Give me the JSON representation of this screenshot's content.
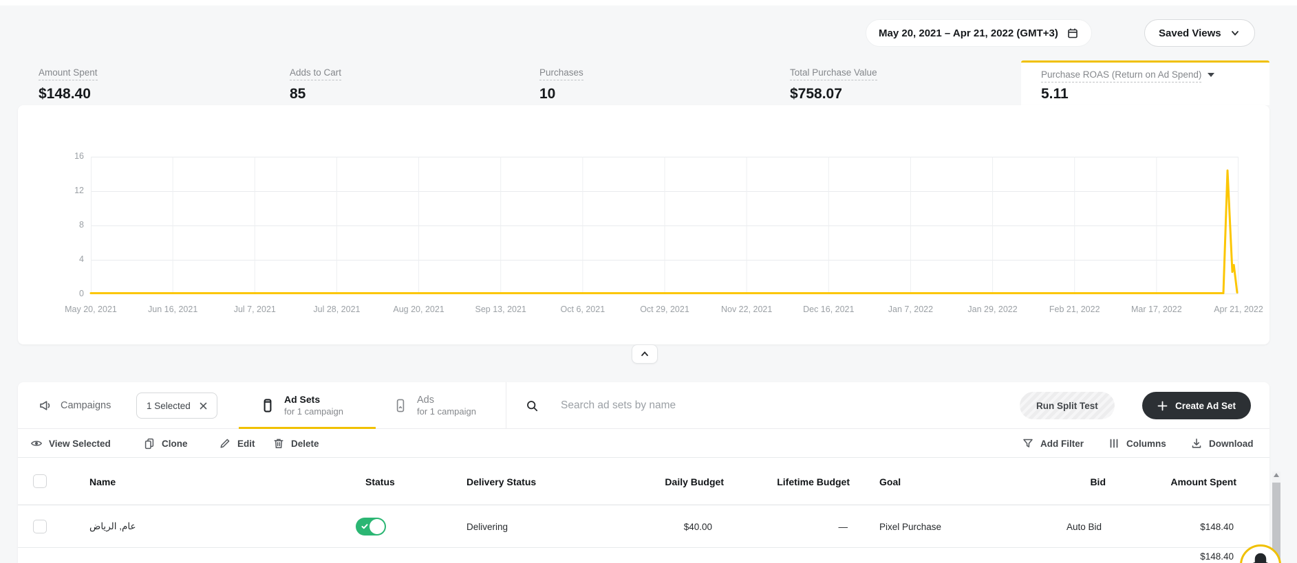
{
  "topbar": {
    "date_range": "May 20, 2021 – Apr 21, 2022 (GMT+3)",
    "saved_views_label": "Saved Views"
  },
  "metrics": [
    {
      "label": "Amount Spent",
      "value": "$148.40"
    },
    {
      "label": "Adds to Cart",
      "value": "85"
    },
    {
      "label": "Purchases",
      "value": "10"
    },
    {
      "label": "Total Purchase Value",
      "value": "$758.07"
    },
    {
      "label": "Purchase ROAS (Return on Ad Spend)",
      "value": "5.11",
      "selected": true
    }
  ],
  "chart_data": {
    "type": "line",
    "title": "Purchase ROAS (Return on Ad Spend)",
    "xlabel": "",
    "ylabel": "",
    "ylim": [
      0,
      16
    ],
    "y_ticks": [
      0,
      4,
      8,
      12,
      16
    ],
    "x_ticks": [
      "May 20, 2021",
      "Jun 16, 2021",
      "Jul 7, 2021",
      "Jul 28, 2021",
      "Aug 20, 2021",
      "Sep 13, 2021",
      "Oct 6, 2021",
      "Oct 29, 2021",
      "Nov 22, 2021",
      "Dec 16, 2021",
      "Jan 7, 2022",
      "Jan 29, 2022",
      "Feb 21, 2022",
      "Mar 17, 2022",
      "Apr 21, 2022"
    ],
    "grid": true,
    "legend_position": "none",
    "points_format": "[fraction_of_x_axis, value]",
    "series": [
      {
        "name": "Purchase ROAS (Return on Ad Spend)",
        "color": "#fcc603",
        "points": [
          [
            0,
            0
          ],
          [
            0.9868,
            0
          ],
          [
            0.9904,
            14.4
          ],
          [
            0.9946,
            2.6
          ],
          [
            0.9959,
            3.4
          ],
          [
            0.9988,
            0.2
          ]
        ]
      }
    ]
  },
  "tabs": {
    "campaigns_label": "Campaigns",
    "selected_chip_label": "1 Selected",
    "ad_sets_label": "Ad Sets",
    "ad_sets_sublabel": "for 1 campaign",
    "ads_label": "Ads",
    "ads_sublabel": "for 1 campaign",
    "active_tab": "Ad Sets"
  },
  "search": {
    "placeholder": "Search ad sets by name"
  },
  "buttons": {
    "run_split_test": "Run Split Test",
    "create_ad_set": "Create Ad Set"
  },
  "toolbar": {
    "view_selected": "View Selected",
    "clone": "Clone",
    "edit": "Edit",
    "delete": "Delete",
    "add_filter": "Add Filter",
    "columns": "Columns",
    "download": "Download"
  },
  "table": {
    "headers": [
      "Name",
      "Status",
      "Delivery Status",
      "Daily Budget",
      "Lifetime Budget",
      "Goal",
      "Bid",
      "Amount Spent"
    ],
    "rows": [
      {
        "name": "عام, الرياض",
        "status_on": true,
        "delivery_status": "Delivering",
        "daily_budget": "$40.00",
        "lifetime_budget": "—",
        "goal": "Pixel Purchase",
        "bid": "Auto Bid",
        "amount_spent": "$148.40"
      }
    ],
    "partial_next_row_amount": "$148.40"
  },
  "colors": {
    "accent_yellow": "#f0c000",
    "chart_line_yellow": "#fcc603",
    "toggle_green": "#2bb673",
    "dark_button": "#2c3034"
  }
}
